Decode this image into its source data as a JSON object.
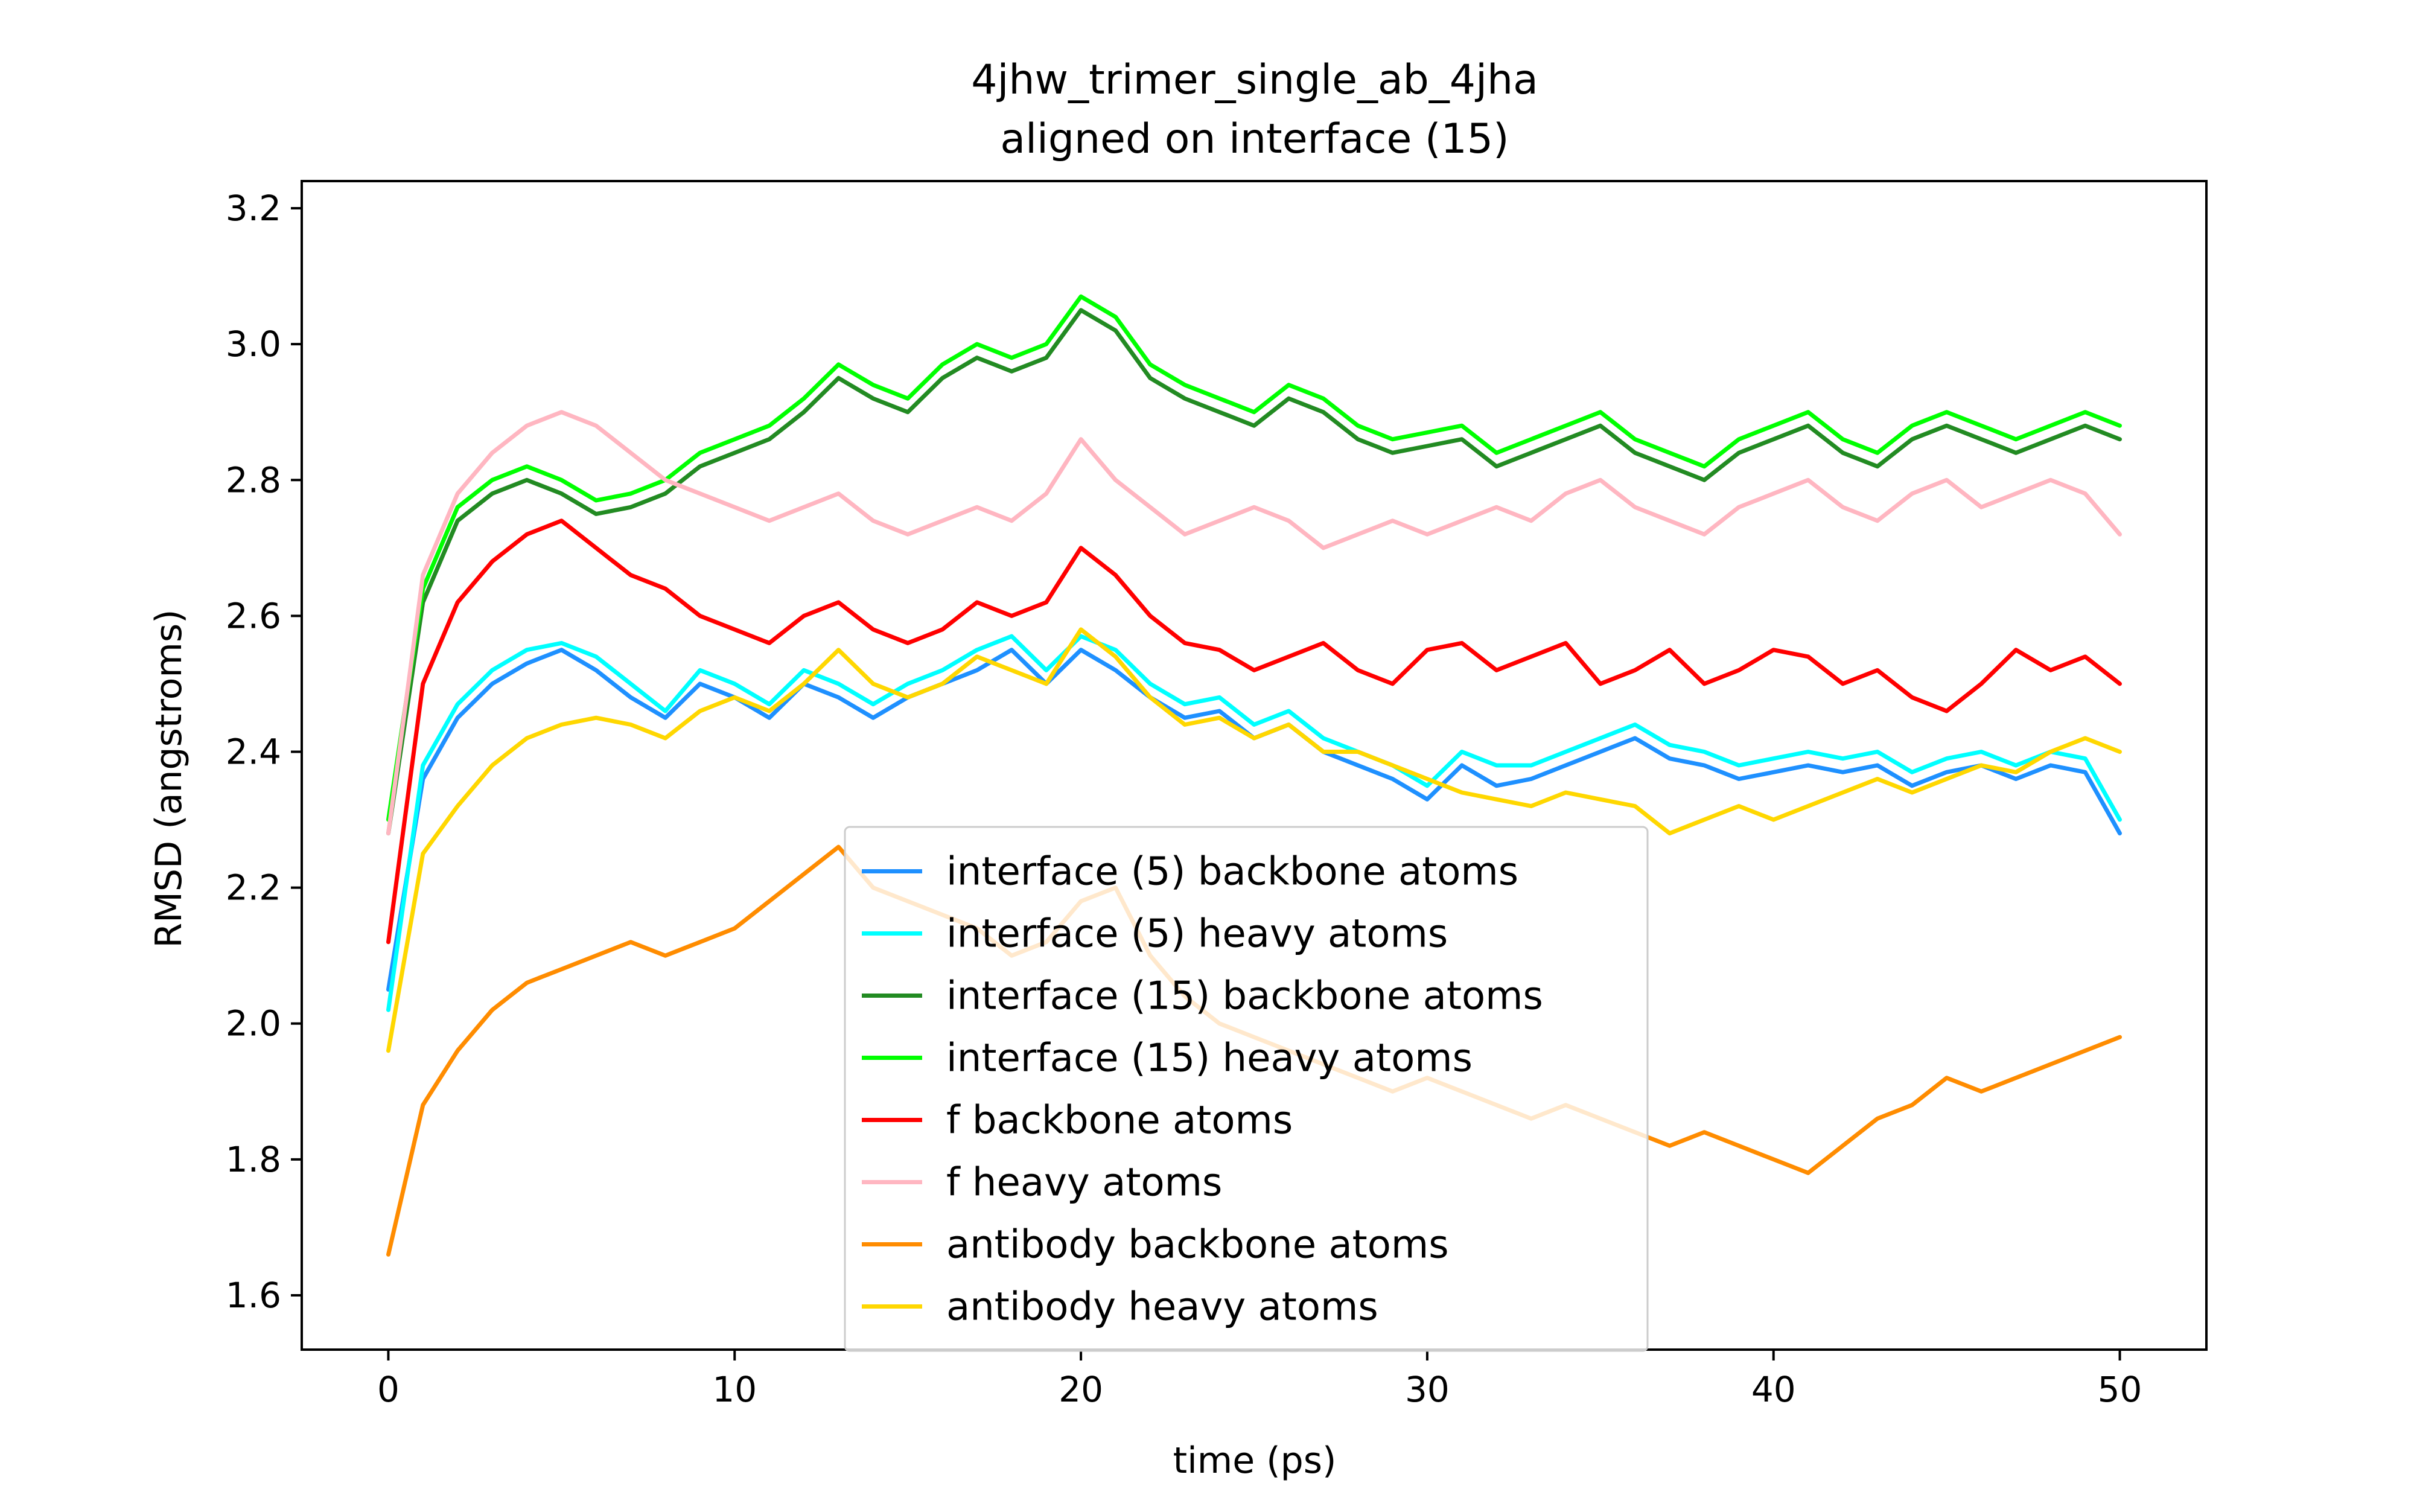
{
  "chart_data": {
    "type": "line",
    "title": "4jhw_trimer_single_ab_4jha\naligned on interface (15)",
    "title_lines": [
      "4jhw_trimer_single_ab_4jha",
      "aligned on interface (15)"
    ],
    "xlabel": "time (ps)",
    "ylabel": "RMSD (angstroms)",
    "xlim": [
      -2.5,
      52.5
    ],
    "ylim": [
      1.52,
      3.24
    ],
    "xticks": [
      0,
      10,
      20,
      30,
      40,
      50
    ],
    "yticks": [
      1.6,
      1.8,
      2.0,
      2.2,
      2.4,
      2.6,
      2.8,
      3.0,
      3.2
    ],
    "xtick_labels": [
      "0",
      "10",
      "20",
      "30",
      "40",
      "50"
    ],
    "ytick_labels": [
      "1.6",
      "1.8",
      "2.0",
      "2.2",
      "2.4",
      "2.6",
      "2.8",
      "3.0",
      "3.2"
    ],
    "grid": false,
    "legend_position": "lower center",
    "x": [
      0,
      1,
      2,
      3,
      4,
      5,
      6,
      7,
      8,
      9,
      10,
      11,
      12,
      13,
      14,
      15,
      16,
      17,
      18,
      19,
      20,
      21,
      22,
      23,
      24,
      25,
      26,
      27,
      28,
      29,
      30,
      31,
      32,
      33,
      34,
      35,
      36,
      37,
      38,
      39,
      40,
      41,
      42,
      43,
      44,
      45,
      46,
      47,
      48,
      49,
      50
    ],
    "series": [
      {
        "name": "interface (5) backbone atoms",
        "color": "#1e90ff",
        "values": [
          2.05,
          2.36,
          2.45,
          2.5,
          2.53,
          2.55,
          2.52,
          2.48,
          2.45,
          2.5,
          2.48,
          2.45,
          2.5,
          2.48,
          2.45,
          2.48,
          2.5,
          2.52,
          2.55,
          2.5,
          2.55,
          2.52,
          2.48,
          2.45,
          2.46,
          2.42,
          2.44,
          2.4,
          2.38,
          2.36,
          2.33,
          2.38,
          2.35,
          2.36,
          2.38,
          2.4,
          2.42,
          2.39,
          2.38,
          2.36,
          2.37,
          2.38,
          2.37,
          2.38,
          2.35,
          2.37,
          2.38,
          2.36,
          2.38,
          2.37,
          2.28
        ]
      },
      {
        "name": "interface (5) heavy atoms",
        "color": "#00ffff",
        "values": [
          2.02,
          2.38,
          2.47,
          2.52,
          2.55,
          2.56,
          2.54,
          2.5,
          2.46,
          2.52,
          2.5,
          2.47,
          2.52,
          2.5,
          2.47,
          2.5,
          2.52,
          2.55,
          2.57,
          2.52,
          2.57,
          2.55,
          2.5,
          2.47,
          2.48,
          2.44,
          2.46,
          2.42,
          2.4,
          2.38,
          2.35,
          2.4,
          2.38,
          2.38,
          2.4,
          2.42,
          2.44,
          2.41,
          2.4,
          2.38,
          2.39,
          2.4,
          2.39,
          2.4,
          2.37,
          2.39,
          2.4,
          2.38,
          2.4,
          2.39,
          2.3
        ]
      },
      {
        "name": "interface (15) backbone atoms",
        "color": "#228b22",
        "values": [
          2.28,
          2.62,
          2.74,
          2.78,
          2.8,
          2.78,
          2.75,
          2.76,
          2.78,
          2.82,
          2.84,
          2.86,
          2.9,
          2.95,
          2.92,
          2.9,
          2.95,
          2.98,
          2.96,
          2.98,
          3.05,
          3.02,
          2.95,
          2.92,
          2.9,
          2.88,
          2.92,
          2.9,
          2.86,
          2.84,
          2.85,
          2.86,
          2.82,
          2.84,
          2.86,
          2.88,
          2.84,
          2.82,
          2.8,
          2.84,
          2.86,
          2.88,
          2.84,
          2.82,
          2.86,
          2.88,
          2.86,
          2.84,
          2.86,
          2.88,
          2.86
        ]
      },
      {
        "name": "interface (15) heavy atoms",
        "color": "#00ff00",
        "values": [
          2.3,
          2.64,
          2.76,
          2.8,
          2.82,
          2.8,
          2.77,
          2.78,
          2.8,
          2.84,
          2.86,
          2.88,
          2.92,
          2.97,
          2.94,
          2.92,
          2.97,
          3.0,
          2.98,
          3.0,
          3.07,
          3.04,
          2.97,
          2.94,
          2.92,
          2.9,
          2.94,
          2.92,
          2.88,
          2.86,
          2.87,
          2.88,
          2.84,
          2.86,
          2.88,
          2.9,
          2.86,
          2.84,
          2.82,
          2.86,
          2.88,
          2.9,
          2.86,
          2.84,
          2.88,
          2.9,
          2.88,
          2.86,
          2.88,
          2.9,
          2.88
        ]
      },
      {
        "name": "f backbone atoms",
        "color": "#ff0000",
        "values": [
          2.12,
          2.5,
          2.62,
          2.68,
          2.72,
          2.74,
          2.7,
          2.66,
          2.64,
          2.6,
          2.58,
          2.56,
          2.6,
          2.62,
          2.58,
          2.56,
          2.58,
          2.62,
          2.6,
          2.62,
          2.7,
          2.66,
          2.6,
          2.56,
          2.55,
          2.52,
          2.54,
          2.56,
          2.52,
          2.5,
          2.55,
          2.56,
          2.52,
          2.54,
          2.56,
          2.5,
          2.52,
          2.55,
          2.5,
          2.52,
          2.55,
          2.54,
          2.5,
          2.52,
          2.48,
          2.46,
          2.5,
          2.55,
          2.52,
          2.54,
          2.5
        ]
      },
      {
        "name": "f heavy atoms",
        "color": "#ffb6c1",
        "values": [
          2.28,
          2.66,
          2.78,
          2.84,
          2.88,
          2.9,
          2.88,
          2.84,
          2.8,
          2.78,
          2.76,
          2.74,
          2.76,
          2.78,
          2.74,
          2.72,
          2.74,
          2.76,
          2.74,
          2.78,
          2.86,
          2.8,
          2.76,
          2.72,
          2.74,
          2.76,
          2.74,
          2.7,
          2.72,
          2.74,
          2.72,
          2.74,
          2.76,
          2.74,
          2.78,
          2.8,
          2.76,
          2.74,
          2.72,
          2.76,
          2.78,
          2.8,
          2.76,
          2.74,
          2.78,
          2.8,
          2.76,
          2.78,
          2.8,
          2.78,
          2.72
        ]
      },
      {
        "name": "antibody backbone atoms",
        "color": "#ff8c00",
        "values": [
          1.66,
          1.88,
          1.96,
          2.02,
          2.06,
          2.08,
          2.1,
          2.12,
          2.1,
          2.12,
          2.14,
          2.18,
          2.22,
          2.26,
          2.2,
          2.18,
          2.16,
          2.14,
          2.1,
          2.12,
          2.18,
          2.2,
          2.1,
          2.04,
          2.0,
          1.98,
          1.96,
          1.94,
          1.92,
          1.9,
          1.92,
          1.9,
          1.88,
          1.86,
          1.88,
          1.86,
          1.84,
          1.82,
          1.84,
          1.82,
          1.8,
          1.78,
          1.82,
          1.86,
          1.88,
          1.92,
          1.9,
          1.92,
          1.94,
          1.96,
          1.98
        ]
      },
      {
        "name": "antibody heavy atoms",
        "color": "#ffd700",
        "values": [
          1.96,
          2.25,
          2.32,
          2.38,
          2.42,
          2.44,
          2.45,
          2.44,
          2.42,
          2.46,
          2.48,
          2.46,
          2.5,
          2.55,
          2.5,
          2.48,
          2.5,
          2.54,
          2.52,
          2.5,
          2.58,
          2.54,
          2.48,
          2.44,
          2.45,
          2.42,
          2.44,
          2.4,
          2.4,
          2.38,
          2.36,
          2.34,
          2.33,
          2.32,
          2.34,
          2.33,
          2.32,
          2.28,
          2.3,
          2.32,
          2.3,
          2.32,
          2.34,
          2.36,
          2.34,
          2.36,
          2.38,
          2.37,
          2.4,
          2.42,
          2.4
        ]
      }
    ]
  }
}
